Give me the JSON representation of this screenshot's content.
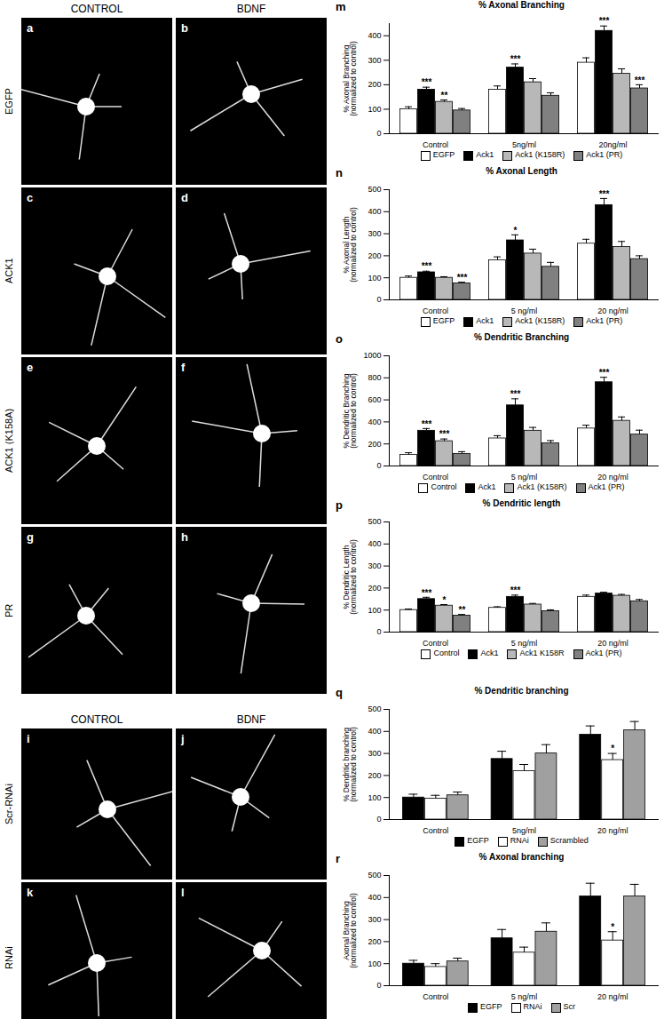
{
  "image_panels": [
    {
      "headers": [
        "CONTROL",
        "BDNF"
      ],
      "rows": [
        {
          "label": "EGFP",
          "panels": [
            "a",
            "b"
          ]
        },
        {
          "label": "ACK1",
          "panels": [
            "c",
            "d"
          ]
        },
        {
          "label": "ACK1 (K158A)",
          "panels": [
            "e",
            "f"
          ]
        },
        {
          "label": "PR",
          "panels": [
            "g",
            "h"
          ]
        }
      ]
    },
    {
      "headers": [
        "CONTROL",
        "BDNF"
      ],
      "rows": [
        {
          "label": "Scr-RNAi",
          "panels": [
            "i",
            "j"
          ]
        },
        {
          "label": "RNAi",
          "panels": [
            "k",
            "l"
          ]
        }
      ]
    }
  ],
  "chart_data": [
    {
      "type": "bar",
      "panel": "m",
      "title": "% Axonal Branching",
      "ylabel": "% Axonal Branching\n(normalized to control)",
      "categories": [
        "Control",
        "5ng/ml",
        "20ng/ml"
      ],
      "ylim": [
        0,
        450
      ],
      "yticks": [
        0,
        100,
        200,
        300,
        400
      ],
      "series": [
        {
          "name": "EGFP",
          "color": "#ffffff",
          "values": [
            100,
            180,
            290
          ],
          "errors": [
            10,
            15,
            20
          ],
          "annotations": [
            null,
            null,
            null
          ]
        },
        {
          "name": "Ack1",
          "color": "#000000",
          "values": [
            180,
            270,
            420
          ],
          "errors": [
            10,
            15,
            20
          ],
          "annotations": [
            "***",
            "***",
            "***"
          ]
        },
        {
          "name": "Ack1 (K158R)",
          "color": "#b8b8b8",
          "values": [
            130,
            210,
            245
          ],
          "errors": [
            8,
            15,
            20
          ],
          "annotations": [
            "**",
            null,
            null
          ]
        },
        {
          "name": "Ack1 (PR)",
          "color": "#808080",
          "values": [
            95,
            155,
            185
          ],
          "errors": [
            8,
            12,
            15
          ],
          "annotations": [
            null,
            null,
            "***"
          ]
        }
      ]
    },
    {
      "type": "bar",
      "panel": "n",
      "title": "% Axonal Length",
      "ylabel": "% Axonal Length\n(normalized to control)",
      "categories": [
        "Control",
        "5 ng/ml",
        "20 ng/ml"
      ],
      "ylim": [
        0,
        500
      ],
      "yticks": [
        0,
        100,
        200,
        300,
        400,
        500
      ],
      "series": [
        {
          "name": "EGFP",
          "color": "#ffffff",
          "values": [
            100,
            180,
            255
          ],
          "errors": [
            8,
            15,
            20
          ],
          "annotations": [
            null,
            null,
            null
          ]
        },
        {
          "name": "Ack1",
          "color": "#000000",
          "values": [
            125,
            270,
            430
          ],
          "errors": [
            5,
            25,
            30
          ],
          "annotations": [
            "***",
            "*",
            "***"
          ]
        },
        {
          "name": "Ack1 (K158R)",
          "color": "#b8b8b8",
          "values": [
            100,
            210,
            240
          ],
          "errors": [
            5,
            20,
            25
          ],
          "annotations": [
            null,
            null,
            null
          ]
        },
        {
          "name": "Ack1 (PR)",
          "color": "#808080",
          "values": [
            75,
            150,
            185
          ],
          "errors": [
            5,
            20,
            15
          ],
          "annotations": [
            "***",
            null,
            null
          ]
        }
      ]
    },
    {
      "type": "bar",
      "panel": "o",
      "title": "% Dendritic Branching",
      "ylabel": "% Dendritic Branching\n(normalized to control)",
      "categories": [
        "Control",
        "5 ng/ml",
        "20 ng/ml"
      ],
      "ylim": [
        0,
        1000
      ],
      "yticks": [
        0,
        200,
        400,
        600,
        800,
        1000
      ],
      "series": [
        {
          "name": "Control",
          "color": "#ffffff",
          "values": [
            100,
            250,
            340
          ],
          "errors": [
            20,
            25,
            30
          ],
          "annotations": [
            null,
            null,
            null
          ]
        },
        {
          "name": "Ack1",
          "color": "#000000",
          "values": [
            320,
            550,
            760
          ],
          "errors": [
            20,
            60,
            45
          ],
          "annotations": [
            "***",
            "***",
            "***"
          ]
        },
        {
          "name": "Ack1 (K158R)",
          "color": "#b8b8b8",
          "values": [
            225,
            320,
            410
          ],
          "errors": [
            20,
            30,
            35
          ],
          "annotations": [
            "***",
            null,
            null
          ]
        },
        {
          "name": "Ack1 (PR)",
          "color": "#808080",
          "values": [
            110,
            205,
            285
          ],
          "errors": [
            20,
            25,
            40
          ],
          "annotations": [
            null,
            null,
            null
          ]
        }
      ]
    },
    {
      "type": "bar",
      "panel": "p",
      "title": "% Dendritic length",
      "ylabel": "% Dendritic Length\n(normalized to control)",
      "categories": [
        "Control",
        "5 ng/ml",
        "20 ng/ml"
      ],
      "ylim": [
        0,
        500
      ],
      "yticks": [
        0,
        100,
        200,
        300,
        400,
        500
      ],
      "series": [
        {
          "name": "Control",
          "color": "#ffffff",
          "values": [
            100,
            110,
            160
          ],
          "errors": [
            5,
            5,
            8
          ],
          "annotations": [
            null,
            null,
            null
          ]
        },
        {
          "name": "Ack1",
          "color": "#000000",
          "values": [
            150,
            160,
            175
          ],
          "errors": [
            8,
            8,
            6
          ],
          "annotations": [
            "***",
            "***",
            null
          ]
        },
        {
          "name": "Ack1 K158R",
          "color": "#b8b8b8",
          "values": [
            120,
            125,
            165
          ],
          "errors": [
            5,
            5,
            6
          ],
          "annotations": [
            "*",
            null,
            null
          ]
        },
        {
          "name": "Ack1 (PR)",
          "color": "#808080",
          "values": [
            75,
            95,
            140
          ],
          "errors": [
            5,
            6,
            8
          ],
          "annotations": [
            "**",
            null,
            null
          ]
        }
      ]
    },
    {
      "type": "bar",
      "panel": "q",
      "title": "% Dendritic branching",
      "ylabel": "% Dendritic branching\n(normalized to control)",
      "categories": [
        "Control",
        "5ng/ml",
        "20 ng/ml"
      ],
      "ylim": [
        0,
        500
      ],
      "yticks": [
        0,
        100,
        200,
        300,
        400,
        500
      ],
      "series": [
        {
          "name": "EGFP",
          "color": "#000000",
          "values": [
            100,
            275,
            385
          ],
          "errors": [
            15,
            35,
            40
          ],
          "annotations": [
            null,
            null,
            null
          ]
        },
        {
          "name": "RNAi",
          "color": "#ffffff",
          "values": [
            95,
            220,
            270
          ],
          "errors": [
            15,
            30,
            30
          ],
          "annotations": [
            null,
            null,
            "*"
          ]
        },
        {
          "name": "Scrambled",
          "color": "#a0a0a0",
          "values": [
            110,
            300,
            405
          ],
          "errors": [
            15,
            40,
            40
          ],
          "annotations": [
            null,
            null,
            null
          ]
        }
      ]
    },
    {
      "type": "bar",
      "panel": "r",
      "title": "% Axonal branching",
      "ylabel": "Axonal Branching\n(normalized to control)",
      "categories": [
        "Control",
        "5 ng/ml",
        "20 ng/ml"
      ],
      "ylim": [
        0,
        500
      ],
      "yticks": [
        0,
        100,
        200,
        300,
        400,
        500
      ],
      "series": [
        {
          "name": "EGFP",
          "color": "#000000",
          "values": [
            100,
            215,
            405
          ],
          "errors": [
            15,
            40,
            60
          ],
          "annotations": [
            null,
            null,
            null
          ]
        },
        {
          "name": "RNAi",
          "color": "#ffffff",
          "values": [
            85,
            150,
            205
          ],
          "errors": [
            15,
            25,
            40
          ],
          "annotations": [
            null,
            null,
            "*"
          ]
        },
        {
          "name": "Scr",
          "color": "#a0a0a0",
          "values": [
            110,
            245,
            405
          ],
          "errors": [
            15,
            40,
            55
          ],
          "annotations": [
            null,
            null,
            null
          ]
        }
      ]
    }
  ]
}
